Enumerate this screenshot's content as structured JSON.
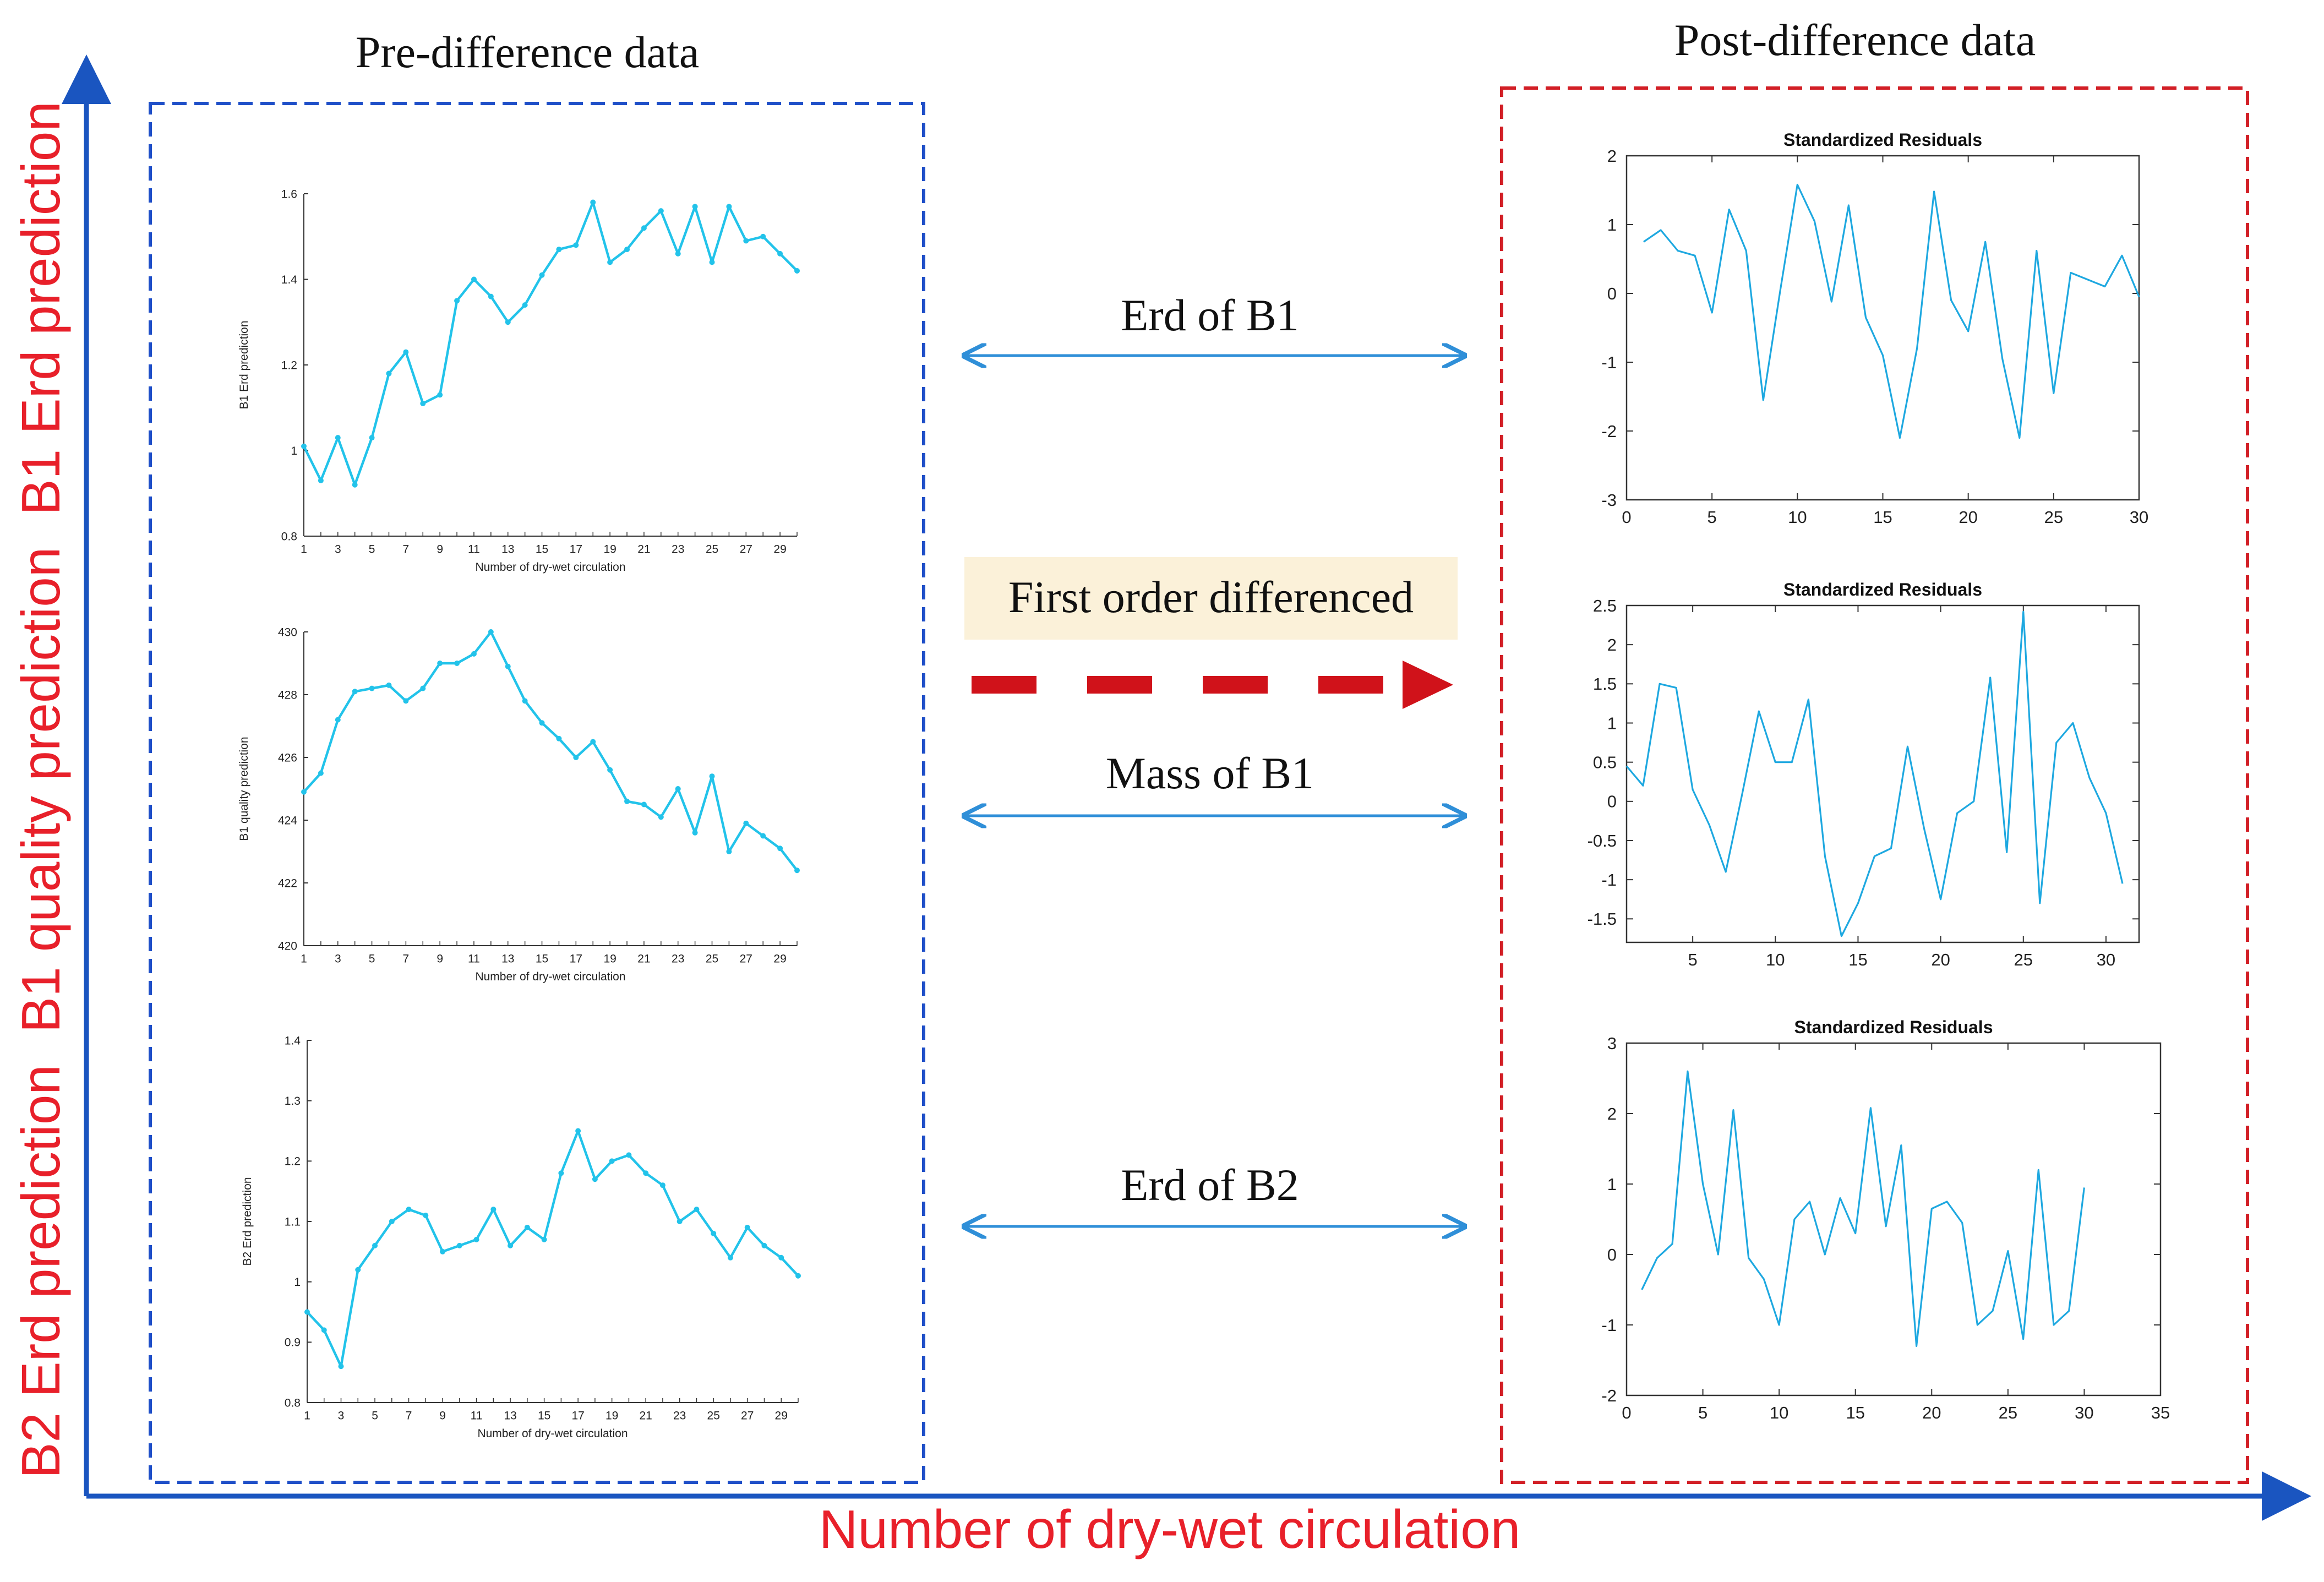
{
  "main_axes": {
    "x_label": "Number of dry-wet circulation",
    "y_labels": [
      "B2 Erd prediction",
      "B1 quality prediction",
      "B1 Erd prediction"
    ],
    "axis_color": "#1a55c0",
    "label_color": "#e8202a"
  },
  "pre_panel": {
    "title": "Pre-difference data",
    "border_color": "#1f4fc8"
  },
  "post_panel": {
    "title": "Post-difference data",
    "border_color": "#d21f26"
  },
  "middle": {
    "links": [
      "Erd of B1",
      "Mass of B1",
      "Erd of B2"
    ],
    "process_label": "First order differenced",
    "process_bg": "#fbf1d9",
    "arrow_color": "#d0121a",
    "link_color": "#2f8fd8"
  },
  "colors": {
    "pre_line": "#22c3ea",
    "post_line": "#1ea8e0",
    "axis": "#333333"
  },
  "chart_data": [
    {
      "id": "pre_b1_erd",
      "type": "line",
      "title": "",
      "xlabel": "Number of dry-wet circulation",
      "ylabel": "B1 Erd prediction",
      "xlim": [
        1,
        30
      ],
      "ylim": [
        0.8,
        1.6
      ],
      "yticks": [
        "0.8",
        "1",
        "1.2",
        "1.4",
        "1.6"
      ],
      "xtick_labels": [
        "1",
        "3",
        "5",
        "7",
        "9",
        "11",
        "13",
        "15",
        "17",
        "19",
        "21",
        "23",
        "25",
        "27",
        "29"
      ],
      "x": [
        1,
        2,
        3,
        4,
        5,
        6,
        7,
        8,
        9,
        10,
        11,
        12,
        13,
        14,
        15,
        16,
        17,
        18,
        19,
        20,
        21,
        22,
        23,
        24,
        25,
        26,
        27,
        28,
        29,
        30
      ],
      "values": [
        1.01,
        0.93,
        1.03,
        0.92,
        1.03,
        1.18,
        1.23,
        1.11,
        1.13,
        1.35,
        1.4,
        1.36,
        1.3,
        1.34,
        1.41,
        1.47,
        1.48,
        1.58,
        1.44,
        1.47,
        1.52,
        1.56,
        1.46,
        1.57,
        1.44,
        1.57,
        1.49,
        1.5,
        1.46,
        1.42
      ],
      "markers": true
    },
    {
      "id": "pre_b1_quality",
      "type": "line",
      "title": "",
      "xlabel": "Number of dry-wet circulation",
      "ylabel": "B1 quality prediction",
      "xlim": [
        1,
        30
      ],
      "ylim": [
        420,
        430
      ],
      "yticks": [
        "420",
        "422",
        "424",
        "426",
        "428",
        "430"
      ],
      "xtick_labels": [
        "1",
        "3",
        "5",
        "7",
        "9",
        "11",
        "13",
        "15",
        "17",
        "19",
        "21",
        "23",
        "25",
        "27",
        "29"
      ],
      "x": [
        1,
        2,
        3,
        4,
        5,
        6,
        7,
        8,
        9,
        10,
        11,
        12,
        13,
        14,
        15,
        16,
        17,
        18,
        19,
        20,
        21,
        22,
        23,
        24,
        25,
        26,
        27,
        28,
        29,
        30
      ],
      "values": [
        424.9,
        425.5,
        427.2,
        428.1,
        428.2,
        428.3,
        427.8,
        428.2,
        429.0,
        429.0,
        429.3,
        430.0,
        428.9,
        427.8,
        427.1,
        426.6,
        426.0,
        426.5,
        425.6,
        424.6,
        424.5,
        424.1,
        425.0,
        423.6,
        425.4,
        423.0,
        423.9,
        423.5,
        423.1,
        422.4
      ],
      "markers": true
    },
    {
      "id": "pre_b2_erd",
      "type": "line",
      "title": "",
      "xlabel": "Number of dry-wet circulation",
      "ylabel": "B2 Erd prediction",
      "xlim": [
        1,
        30
      ],
      "ylim": [
        0.8,
        1.4
      ],
      "yticks": [
        "0.8",
        "0.9",
        "1",
        "1.1",
        "1.2",
        "1.3",
        "1.4"
      ],
      "xtick_labels": [
        "1",
        "3",
        "5",
        "7",
        "9",
        "11",
        "13",
        "15",
        "17",
        "19",
        "21",
        "23",
        "25",
        "27",
        "29"
      ],
      "x": [
        1,
        2,
        3,
        4,
        5,
        6,
        7,
        8,
        9,
        10,
        11,
        12,
        13,
        14,
        15,
        16,
        17,
        18,
        19,
        20,
        21,
        22,
        23,
        24,
        25,
        26,
        27,
        28,
        29,
        30
      ],
      "values": [
        0.95,
        0.92,
        0.86,
        1.02,
        1.06,
        1.1,
        1.12,
        1.11,
        1.05,
        1.06,
        1.07,
        1.12,
        1.06,
        1.09,
        1.07,
        1.18,
        1.25,
        1.17,
        1.2,
        1.21,
        1.18,
        1.16,
        1.1,
        1.12,
        1.08,
        1.04,
        1.09,
        1.06,
        1.04,
        1.01
      ],
      "markers": true
    },
    {
      "id": "post_b1_erd",
      "type": "line",
      "title": "Standardized Residuals",
      "xlim": [
        0,
        30
      ],
      "ylim": [
        -3,
        2
      ],
      "yticks": [
        "-3",
        "-2",
        "-1",
        "0",
        "1",
        "2"
      ],
      "xticks": [
        "0",
        "5",
        "10",
        "15",
        "20",
        "25",
        "30"
      ],
      "x": [
        1,
        2,
        3,
        4,
        5,
        6,
        7,
        8,
        9,
        10,
        11,
        12,
        13,
        14,
        15,
        16,
        17,
        18,
        19,
        20,
        21,
        22,
        23,
        24,
        25,
        26,
        27,
        28,
        29,
        30
      ],
      "values": [
        0.75,
        0.92,
        0.62,
        0.55,
        -0.28,
        1.22,
        0.62,
        -1.55,
        0.05,
        1.58,
        1.05,
        -0.12,
        1.28,
        -0.35,
        -0.9,
        -2.1,
        -0.8,
        1.48,
        -0.1,
        -0.55,
        0.75,
        -0.95,
        -2.1,
        0.62,
        -1.45,
        0.3,
        0.2,
        0.1,
        0.55,
        -0.05
      ],
      "markers": false
    },
    {
      "id": "post_b1_mass",
      "type": "line",
      "title": "Standardized Residuals",
      "xlim": [
        1,
        32
      ],
      "ylim": [
        -1.8,
        2.5
      ],
      "yticks": [
        "-1.5",
        "-1",
        "-0.5",
        "0",
        "0.5",
        "1",
        "1.5",
        "2",
        "2.5"
      ],
      "xticks": [
        "5",
        "10",
        "15",
        "20",
        "25",
        "30"
      ],
      "x": [
        1,
        2,
        3,
        4,
        5,
        6,
        7,
        8,
        9,
        10,
        11,
        12,
        13,
        14,
        15,
        16,
        17,
        18,
        19,
        20,
        21,
        22,
        23,
        24,
        25,
        26,
        27,
        28,
        29,
        30,
        31
      ],
      "values": [
        0.45,
        0.2,
        1.5,
        1.45,
        0.15,
        -0.3,
        -0.9,
        0.1,
        1.15,
        0.5,
        0.5,
        1.3,
        -0.7,
        -1.72,
        -1.3,
        -0.7,
        -0.6,
        0.7,
        -0.35,
        -1.25,
        -0.15,
        0.0,
        1.58,
        -0.65,
        2.42,
        -1.3,
        0.75,
        1.0,
        0.3,
        -0.15,
        -1.05
      ],
      "markers": false
    },
    {
      "id": "post_b2_erd",
      "type": "line",
      "title": "Standardized Residuals",
      "xlim": [
        0,
        35
      ],
      "ylim": [
        -2,
        3
      ],
      "yticks": [
        "-2",
        "-1",
        "0",
        "1",
        "2",
        "3"
      ],
      "xticks": [
        "0",
        "5",
        "10",
        "15",
        "20",
        "25",
        "30",
        "35"
      ],
      "x": [
        1,
        2,
        3,
        4,
        5,
        6,
        7,
        8,
        9,
        10,
        11,
        12,
        13,
        14,
        15,
        16,
        17,
        18,
        19,
        20,
        21,
        22,
        23,
        24,
        25,
        26,
        27,
        28,
        29,
        30
      ],
      "values": [
        -0.5,
        -0.05,
        0.15,
        2.6,
        1.0,
        0.0,
        2.05,
        -0.05,
        -0.35,
        -1.0,
        0.5,
        0.75,
        0.0,
        0.8,
        0.3,
        2.08,
        0.4,
        1.55,
        -1.3,
        0.65,
        0.75,
        0.45,
        -1.0,
        -0.8,
        0.05,
        -1.2,
        1.2,
        -1.0,
        -0.8,
        0.95
      ],
      "markers": false
    }
  ]
}
